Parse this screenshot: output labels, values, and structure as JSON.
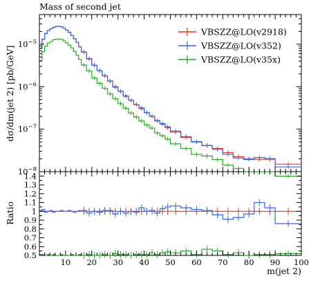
{
  "chart_data": {
    "type": "line",
    "title": "Mass of second jet",
    "xlabel": "m(jet 2)",
    "ylabel": "dσ/dm(jet 2) [pb/GeV]",
    "ratio_ylabel": "Ratio",
    "xlim": [
      0,
      100
    ],
    "ylim": [
      1e-08,
      5e-05
    ],
    "yscale": "log",
    "ratio_ylim": [
      0.5,
      1.45
    ],
    "legend_position": "top-right",
    "xticks": [
      10,
      20,
      30,
      40,
      50,
      60,
      70,
      80,
      90,
      100
    ],
    "yticks": [
      {
        "value": 1e-08,
        "base": "10",
        "exp": "−8"
      },
      {
        "value": 1e-07,
        "base": "10",
        "exp": "−7"
      },
      {
        "value": 1e-06,
        "base": "10",
        "exp": "−6"
      },
      {
        "value": 1e-05,
        "base": "10",
        "exp": "−5"
      }
    ],
    "ratio_yticks": [
      0.5,
      0.6,
      0.7,
      0.8,
      0.9,
      1,
      1.1,
      1.2,
      1.3,
      1.4
    ],
    "bin_edges": [
      0,
      1,
      2,
      3,
      4,
      5,
      6,
      7,
      8,
      9,
      10,
      11,
      12,
      13,
      14,
      15,
      16,
      18,
      20,
      22,
      24,
      26,
      28,
      30,
      32,
      34,
      36,
      38,
      40,
      42,
      44,
      46,
      48,
      50,
      54,
      58,
      62,
      66,
      70,
      74,
      78,
      82,
      86,
      90,
      100
    ],
    "series": [
      {
        "name": "VBSZZ@LO(v2918)",
        "color": "#ee3311",
        "values": [
          8e-06,
          1.3e-05,
          1.8e-05,
          2.1e-05,
          2.3e-05,
          2.5e-05,
          2.62e-05,
          2.65e-05,
          2.55e-05,
          2.4e-05,
          2.15e-05,
          1.9e-05,
          1.6e-05,
          1.35e-05,
          1.1e-05,
          8.6e-06,
          6.5e-06,
          4.6e-06,
          3.2e-06,
          2.4e-06,
          1.8e-06,
          1.35e-06,
          1e-06,
          7.8e-07,
          6.1e-07,
          4.8e-07,
          3.8e-07,
          3.05e-07,
          2.45e-07,
          2e-07,
          1.6e-07,
          1.32e-07,
          1.08e-07,
          8.5e-08,
          6.4e-08,
          5e-08,
          4.1e-08,
          3.5e-08,
          2.8e-08,
          2.25e-08,
          2e-08,
          1.95e-08,
          1.95e-08,
          1.5e-08
        ]
      },
      {
        "name": "VBSZZ@LO(v352)",
        "color": "#3366ee",
        "ratio": [
          1.01,
          1.02,
          0.99,
          1.0,
          1.01,
          0.99,
          1.0,
          1.0,
          1.01,
          1.0,
          1.0,
          1.01,
          1.0,
          0.99,
          1.0,
          1.01,
          1.01,
          0.98,
          1.0,
          0.99,
          1.01,
          1.01,
          0.97,
          1.0,
          0.98,
          1.0,
          0.99,
          1.04,
          1.0,
          1.01,
          0.98,
          1.03,
          1.05,
          1.06,
          1.04,
          1.02,
          1.01,
          0.96,
          0.91,
          0.93,
          0.97,
          1.1,
          1.04,
          0.86
        ]
      },
      {
        "name": "VBSZZ@LO(v35x)",
        "color": "#22aa22",
        "ratio": [
          0.51,
          0.51,
          0.5,
          0.51,
          0.5,
          0.51,
          0.5,
          0.5,
          0.51,
          0.5,
          0.5,
          0.5,
          0.51,
          0.5,
          0.5,
          0.51,
          0.5,
          0.51,
          0.5,
          0.5,
          0.51,
          0.5,
          0.52,
          0.51,
          0.51,
          0.5,
          0.51,
          0.51,
          0.51,
          0.53,
          0.51,
          0.53,
          0.54,
          0.53,
          0.55,
          0.51,
          0.57,
          0.55,
          0.51,
          0.53,
          0.5,
          0.51,
          0.51,
          0.52
        ]
      }
    ]
  }
}
